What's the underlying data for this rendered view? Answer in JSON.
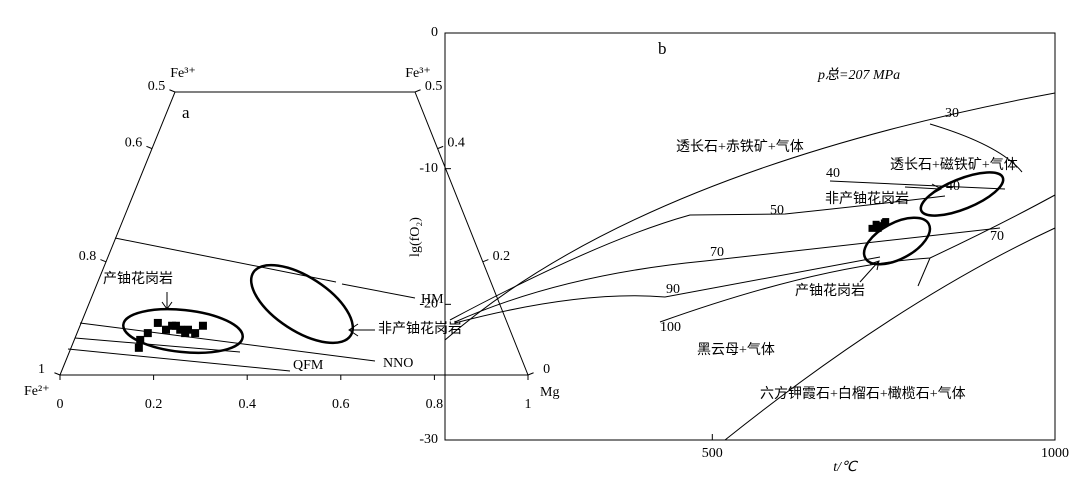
{
  "chart_data": [
    {
      "type": "ternary",
      "corner_labels": [
        "Fe³⁺",
        "Fe³⁺",
        "Fe²⁺",
        "Mg"
      ],
      "annotations": [
        "a",
        "产铀花岗岩",
        "非产铀花岗岩",
        "HM",
        "NNO",
        "QFM"
      ],
      "xlim": [
        0,
        1
      ],
      "xticks": [
        0,
        0.2,
        0.4,
        0.6,
        0.8,
        1
      ],
      "ylim": [
        1,
        0.5
      ],
      "yticks": [
        1,
        0.8,
        0.6,
        0.5
      ],
      "y2lim": [
        0,
        0.5
      ],
      "y2ticks": [
        0,
        0.2,
        0.4,
        0.5
      ],
      "x": [
        0.152,
        0.15,
        0.163,
        0.18,
        0.203,
        0.236,
        0.254,
        0.215,
        0.287,
        0.224,
        0.272,
        0.249
      ],
      "series": [
        {
          "color": "#000000",
          "values": [
            0.952,
            0.938,
            0.926,
            0.908,
            0.92,
            0.92,
            0.92,
            0.913,
            0.913,
            0.913,
            0.926,
            0.926
          ]
        }
      ]
    },
    {
      "type": "scatter",
      "x_label": "t/℃",
      "y_label": "lg(fO₂)",
      "annotations": [
        "b",
        "p总=207 MPa",
        "透长石+赤铁矿+气体",
        "透长石+磁铁矿+气体",
        "非产铀花岗岩",
        "产铀花岗岩",
        "黑云母+气体",
        "六方钾霞石+白榴石+橄榄石+气体",
        "30",
        "40",
        "50",
        "70",
        "90",
        "100",
        "40",
        "70"
      ],
      "xlim": [
        110,
        1000
      ],
      "xticks": [
        500,
        1000
      ],
      "ylim": [
        -30,
        0
      ],
      "yticks": [
        0,
        -10,
        -20,
        -30
      ],
      "x": [
        733,
        739,
        745,
        751,
        742,
        753
      ],
      "series": [
        {
          "color": "#000000",
          "values": [
            -14.4,
            -14.1,
            -14.2,
            -14.0,
            -14.4,
            -13.9
          ]
        }
      ]
    }
  ]
}
